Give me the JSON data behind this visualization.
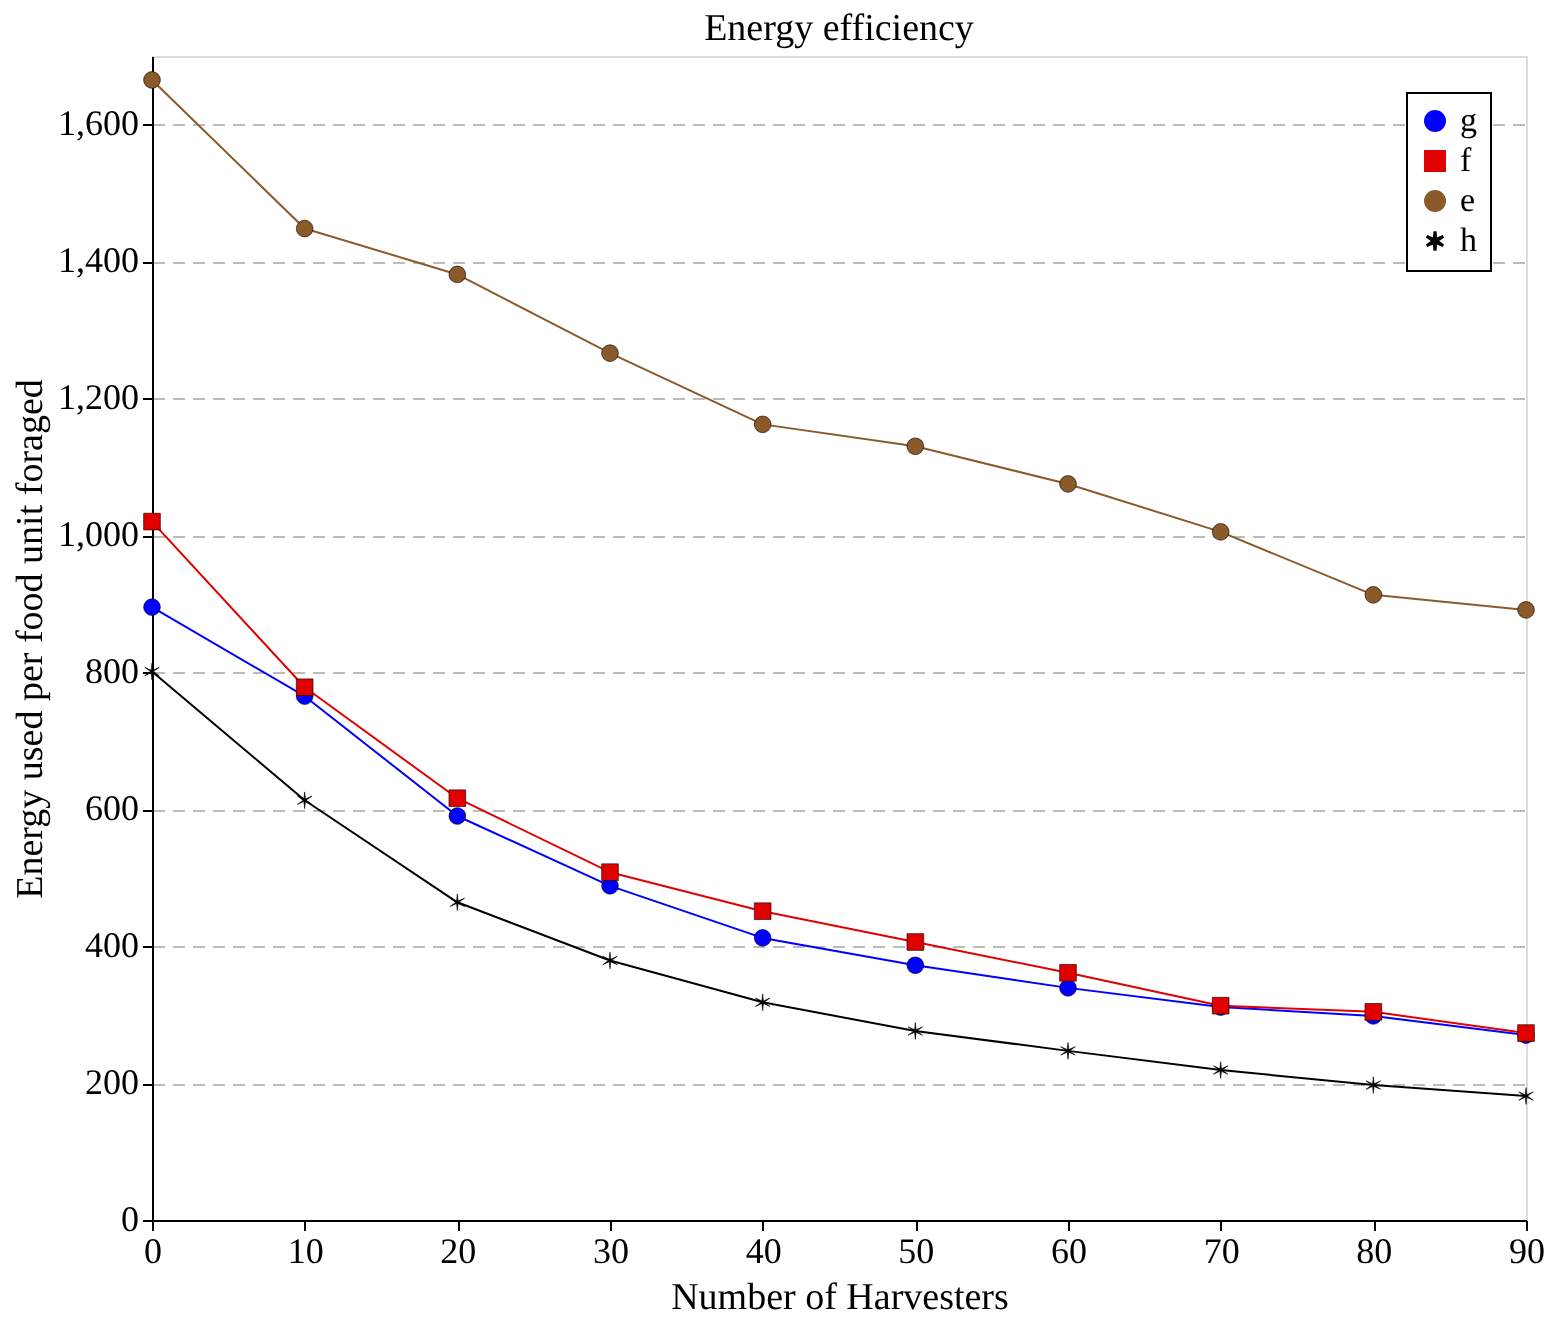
{
  "chart_data": {
    "type": "line",
    "title": "Energy efficiency",
    "xlabel": "Number of Harvesters",
    "ylabel": "Energy used per food unit foraged",
    "x": [
      0,
      10,
      20,
      30,
      40,
      50,
      60,
      70,
      80,
      90
    ],
    "series": [
      {
        "name": "g",
        "color": "#0000ff",
        "marker": "circle",
        "values": [
          895,
          765,
          590,
          488,
          412,
          372,
          339,
          311,
          298,
          270
        ]
      },
      {
        "name": "f",
        "color": "#e00000",
        "marker": "square",
        "values": [
          1020,
          778,
          616,
          508,
          451,
          406,
          361,
          313,
          304,
          273
        ]
      },
      {
        "name": "e",
        "color": "#8b5a2b",
        "marker": "circle",
        "values": [
          1665,
          1448,
          1381,
          1266,
          1162,
          1130,
          1075,
          1005,
          913,
          891
        ]
      },
      {
        "name": "h",
        "color": "#000000",
        "marker": "cross",
        "values": [
          801,
          613,
          464,
          379,
          318,
          276,
          247,
          219,
          197,
          181
        ]
      }
    ],
    "xlim": [
      0,
      90
    ],
    "xticks": [
      0,
      10,
      20,
      30,
      40,
      50,
      60,
      70,
      80,
      90
    ],
    "ylim": [
      0,
      1700
    ],
    "yticks": [
      0,
      200,
      400,
      600,
      800,
      {
        "value": 1000,
        "label": "1,000"
      },
      {
        "value": 1200,
        "label": "1,200"
      },
      {
        "value": 1400,
        "label": "1,400"
      },
      {
        "value": 1600,
        "label": "1,600"
      }
    ],
    "grid": "y",
    "legend": "top right",
    "line_style": "solid"
  }
}
